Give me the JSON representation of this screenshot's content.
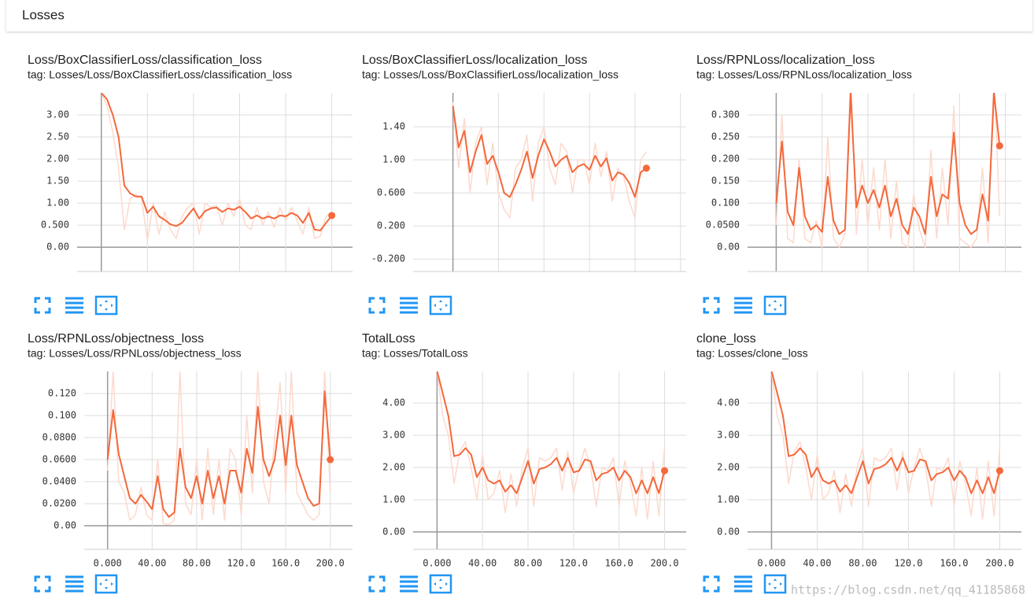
{
  "header": {
    "title": "Losses"
  },
  "watermark": "https://blog.csdn.net/qq_41185868",
  "chart_data": [
    {
      "type": "line",
      "title": "Loss/BoxClassifierLoss/classification_loss",
      "subtitle": "tag: Losses/Loss/BoxClassifierLoss/classification_loss",
      "x": [
        0,
        5,
        10,
        15,
        20,
        25,
        30,
        35,
        40,
        45,
        50,
        55,
        60,
        65,
        70,
        75,
        80,
        85,
        90,
        95,
        100,
        105,
        110,
        115,
        120,
        125,
        130,
        135,
        140,
        145,
        150,
        155,
        160,
        165,
        170,
        175,
        180,
        185,
        190,
        195,
        200
      ],
      "series": [
        {
          "color": "#fcd9cd",
          "values": [
            3.5,
            3.2,
            2.6,
            1.8,
            0.4,
            1.1,
            1.2,
            1.1,
            0.15,
            1.0,
            0.3,
            0.8,
            0.4,
            0.2,
            0.7,
            0.9,
            1.0,
            0.3,
            1.0,
            0.9,
            0.95,
            0.5,
            1.0,
            0.7,
            1.1,
            0.5,
            0.4,
            0.9,
            0.5,
            0.8,
            0.45,
            0.9,
            0.6,
            0.9,
            0.6,
            0.3,
            0.9,
            0.2,
            0.25,
            0.7,
            0.8
          ]
        },
        {
          "color": "#f4683b",
          "values": [
            3.5,
            3.35,
            3.0,
            2.5,
            1.4,
            1.22,
            1.15,
            1.15,
            0.78,
            0.92,
            0.7,
            0.62,
            0.52,
            0.48,
            0.55,
            0.72,
            0.88,
            0.65,
            0.82,
            0.88,
            0.9,
            0.8,
            0.88,
            0.85,
            0.92,
            0.8,
            0.65,
            0.72,
            0.65,
            0.7,
            0.65,
            0.72,
            0.7,
            0.78,
            0.72,
            0.55,
            0.78,
            0.4,
            0.38,
            0.55,
            0.72
          ]
        }
      ],
      "xlim": [
        -21,
        218
      ],
      "xticks": [
        0,
        40,
        80,
        120,
        160,
        200
      ],
      "xtick_labels": false,
      "ylim": [
        -0.55,
        3.5
      ],
      "yticks": [
        {
          "value": 0,
          "label": "0.00"
        },
        {
          "value": 0.5,
          "label": "0.500"
        },
        {
          "value": 1,
          "label": "1.00"
        },
        {
          "value": 1.5,
          "label": "1.50"
        },
        {
          "value": 2,
          "label": "2.00"
        },
        {
          "value": 2.5,
          "label": "2.50"
        },
        {
          "value": 3,
          "label": "3.00"
        }
      ],
      "grid": true
    },
    {
      "type": "line",
      "title": "Loss/BoxClassifierLoss/localization_loss",
      "subtitle": "tag: Losses/Loss/BoxClassifierLoss/localization_loss",
      "x": [
        0,
        5,
        10,
        15,
        20,
        25,
        30,
        35,
        40,
        45,
        50,
        55,
        60,
        65,
        70,
        75,
        80,
        85,
        90,
        95,
        100,
        105,
        110,
        115,
        120,
        125,
        130,
        135,
        140,
        145,
        150,
        155,
        160,
        165,
        170
      ],
      "series": [
        {
          "color": "#fcd9cd",
          "values": [
            1.7,
            0.9,
            1.5,
            0.6,
            1.2,
            1.4,
            0.7,
            1.2,
            0.6,
            0.4,
            0.3,
            0.9,
            1.0,
            1.3,
            0.5,
            1.2,
            1.4,
            0.9,
            0.7,
            1.2,
            1.1,
            0.6,
            1.0,
            1.0,
            0.7,
            1.2,
            0.8,
            1.1,
            0.5,
            0.9,
            0.8,
            0.5,
            0.3,
            1.0,
            1.1
          ]
        },
        {
          "color": "#f4683b",
          "values": [
            1.65,
            1.15,
            1.35,
            0.85,
            1.1,
            1.3,
            0.95,
            1.05,
            0.85,
            0.6,
            0.55,
            0.7,
            0.88,
            1.1,
            0.78,
            1.05,
            1.25,
            1.1,
            0.92,
            1.0,
            1.05,
            0.85,
            0.92,
            0.95,
            0.88,
            1.05,
            0.92,
            1.02,
            0.75,
            0.85,
            0.82,
            0.72,
            0.55,
            0.85,
            0.9
          ]
        }
      ],
      "xlim": [
        -35,
        205
      ],
      "xticks": [
        0,
        40,
        80,
        120,
        160,
        200
      ],
      "xtick_labels": false,
      "ylim": [
        -0.35,
        1.81
      ],
      "yticks": [
        {
          "value": -0.2,
          "label": "-0.200"
        },
        {
          "value": 0.2,
          "label": "0.200"
        },
        {
          "value": 0.6,
          "label": "0.600"
        },
        {
          "value": 1,
          "label": "1.00"
        },
        {
          "value": 1.4,
          "label": "1.40"
        }
      ],
      "grid": true
    },
    {
      "type": "line",
      "title": "Loss/RPNLoss/localization_loss",
      "subtitle": "tag: Losses/Loss/RPNLoss/localization_loss",
      "x": [
        0,
        5,
        10,
        15,
        20,
        25,
        30,
        35,
        40,
        45,
        50,
        55,
        60,
        65,
        70,
        75,
        80,
        85,
        90,
        95,
        100,
        105,
        110,
        115,
        120,
        125,
        130,
        135,
        140,
        145,
        150,
        155,
        160,
        165,
        170,
        175,
        180,
        185,
        190,
        195
      ],
      "series": [
        {
          "color": "#fcd9cd",
          "values": [
            0.05,
            0.3,
            0.02,
            0.01,
            0.2,
            0.02,
            0.01,
            0.06,
            0.0,
            0.25,
            0.02,
            0.0,
            0.03,
            0.4,
            0.03,
            0.2,
            0.05,
            0.18,
            0.04,
            0.2,
            0.02,
            0.15,
            0.01,
            0.0,
            0.12,
            0.04,
            0.0,
            0.22,
            0.02,
            0.18,
            0.05,
            0.32,
            0.02,
            0.01,
            0.0,
            0.02,
            0.18,
            0.01,
            0.4,
            0.07
          ]
        },
        {
          "color": "#f4683b",
          "values": [
            0.1,
            0.24,
            0.08,
            0.05,
            0.18,
            0.07,
            0.04,
            0.05,
            0.035,
            0.16,
            0.06,
            0.03,
            0.04,
            0.35,
            0.09,
            0.14,
            0.1,
            0.13,
            0.09,
            0.14,
            0.07,
            0.11,
            0.05,
            0.03,
            0.09,
            0.07,
            0.03,
            0.16,
            0.07,
            0.12,
            0.11,
            0.26,
            0.1,
            0.05,
            0.03,
            0.04,
            0.12,
            0.06,
            0.35,
            0.23
          ]
        }
      ],
      "xlim": [
        -25,
        214
      ],
      "xticks": [
        0,
        40,
        80,
        120,
        160,
        200
      ],
      "xtick_labels": false,
      "ylim": [
        -0.055,
        0.35
      ],
      "yticks": [
        {
          "value": 0,
          "label": "0.00"
        },
        {
          "value": 0.05,
          "label": "0.0500"
        },
        {
          "value": 0.1,
          "label": "0.100"
        },
        {
          "value": 0.15,
          "label": "0.150"
        },
        {
          "value": 0.2,
          "label": "0.200"
        },
        {
          "value": 0.25,
          "label": "0.250"
        },
        {
          "value": 0.3,
          "label": "0.300"
        }
      ],
      "grid": true
    },
    {
      "type": "line",
      "title": "Loss/RPNLoss/objectness_loss",
      "subtitle": "tag: Losses/Loss/RPNLoss/objectness_loss",
      "x": [
        0,
        5,
        10,
        15,
        20,
        25,
        30,
        35,
        40,
        45,
        50,
        55,
        60,
        65,
        70,
        75,
        80,
        85,
        90,
        95,
        100,
        105,
        110,
        115,
        120,
        125,
        130,
        135,
        140,
        145,
        150,
        155,
        160,
        165,
        170,
        175,
        180,
        185,
        190,
        195,
        200
      ],
      "series": [
        {
          "color": "#fcd9cd",
          "values": [
            0.05,
            0.14,
            0.04,
            0.03,
            0.005,
            0.01,
            0.035,
            0.01,
            0.005,
            0.06,
            0.002,
            0.001,
            0.005,
            0.14,
            0.02,
            0.01,
            0.06,
            0.005,
            0.07,
            0.01,
            0.06,
            0.005,
            0.07,
            0.06,
            0.01,
            0.1,
            0.03,
            0.14,
            0.04,
            0.02,
            0.08,
            0.13,
            0.03,
            0.14,
            0.03,
            0.02,
            0.01,
            0.005,
            0.01,
            0.14,
            0.03
          ]
        },
        {
          "color": "#f4683b",
          "values": [
            0.06,
            0.105,
            0.065,
            0.045,
            0.025,
            0.02,
            0.028,
            0.022,
            0.015,
            0.045,
            0.015,
            0.008,
            0.012,
            0.07,
            0.035,
            0.025,
            0.045,
            0.02,
            0.05,
            0.025,
            0.045,
            0.02,
            0.05,
            0.05,
            0.03,
            0.07,
            0.048,
            0.108,
            0.06,
            0.045,
            0.06,
            0.1,
            0.055,
            0.1,
            0.055,
            0.04,
            0.025,
            0.018,
            0.02,
            0.122,
            0.06
          ]
        }
      ],
      "xlim": [
        -21,
        220
      ],
      "xticks": [
        {
          "value": 0,
          "label": "0.000"
        },
        {
          "value": 40,
          "label": "40.00"
        },
        {
          "value": 80,
          "label": "80.00"
        },
        {
          "value": 120,
          "label": "120.0"
        },
        {
          "value": 160,
          "label": "160.0"
        },
        {
          "value": 200,
          "label": "200.0"
        }
      ],
      "ylim": [
        -0.0214,
        0.14
      ],
      "yticks": [
        {
          "value": 0,
          "label": "0.00"
        },
        {
          "value": 0.02,
          "label": "0.0200"
        },
        {
          "value": 0.04,
          "label": "0.0400"
        },
        {
          "value": 0.06,
          "label": "0.0600"
        },
        {
          "value": 0.08,
          "label": "0.0800"
        },
        {
          "value": 0.1,
          "label": "0.100"
        },
        {
          "value": 0.12,
          "label": "0.120"
        }
      ],
      "grid": true
    },
    {
      "type": "line",
      "title": "TotalLoss",
      "subtitle": "tag: Losses/TotalLoss",
      "x": [
        0,
        5,
        10,
        15,
        20,
        25,
        30,
        35,
        40,
        45,
        50,
        55,
        60,
        65,
        70,
        75,
        80,
        85,
        90,
        95,
        100,
        105,
        110,
        115,
        120,
        125,
        130,
        135,
        140,
        145,
        150,
        155,
        160,
        165,
        170,
        175,
        180,
        185,
        190,
        195,
        200
      ],
      "series": [
        {
          "color": "#fcd9cd",
          "values": [
            5.0,
            3.6,
            3.0,
            1.5,
            2.5,
            2.8,
            2.0,
            1.0,
            2.4,
            1.0,
            1.2,
            1.9,
            0.6,
            1.8,
            0.8,
            2.0,
            2.6,
            0.8,
            2.3,
            2.2,
            2.3,
            2.6,
            1.3,
            2.5,
            1.2,
            2.0,
            2.6,
            2.0,
            0.8,
            2.0,
            1.9,
            2.3,
            0.8,
            2.2,
            1.5,
            0.5,
            2.0,
            0.4,
            2.2,
            0.5,
            2.6
          ]
        },
        {
          "color": "#f4683b",
          "values": [
            5.0,
            4.3,
            3.6,
            2.35,
            2.4,
            2.6,
            2.4,
            1.7,
            2.0,
            1.6,
            1.5,
            1.6,
            1.25,
            1.45,
            1.2,
            1.7,
            2.2,
            1.5,
            1.95,
            2.0,
            2.1,
            2.3,
            1.9,
            2.3,
            1.85,
            1.9,
            2.25,
            2.2,
            1.6,
            1.8,
            1.85,
            2.0,
            1.6,
            1.9,
            1.7,
            1.2,
            1.6,
            1.2,
            1.7,
            1.2,
            1.9
          ]
        }
      ],
      "xlim": [
        -21,
        219
      ],
      "xticks": [
        {
          "value": 0,
          "label": "0.000"
        },
        {
          "value": 40,
          "label": "40.00"
        },
        {
          "value": 80,
          "label": "80.00"
        },
        {
          "value": 120,
          "label": "120.0"
        },
        {
          "value": 160,
          "label": "160.0"
        },
        {
          "value": 200,
          "label": "200.0"
        }
      ],
      "ylim": [
        -0.54,
        4.98
      ],
      "yticks": [
        {
          "value": 0,
          "label": "0.00"
        },
        {
          "value": 1,
          "label": "1.00"
        },
        {
          "value": 2,
          "label": "2.00"
        },
        {
          "value": 3,
          "label": "3.00"
        },
        {
          "value": 4,
          "label": "4.00"
        }
      ],
      "grid": true
    },
    {
      "type": "line",
      "title": "clone_loss",
      "subtitle": "tag: Losses/clone_loss",
      "x": [
        0,
        5,
        10,
        15,
        20,
        25,
        30,
        35,
        40,
        45,
        50,
        55,
        60,
        65,
        70,
        75,
        80,
        85,
        90,
        95,
        100,
        105,
        110,
        115,
        120,
        125,
        130,
        135,
        140,
        145,
        150,
        155,
        160,
        165,
        170,
        175,
        180,
        185,
        190,
        195,
        200
      ],
      "series": [
        {
          "color": "#fcd9cd",
          "values": [
            5.0,
            3.6,
            3.0,
            1.5,
            2.5,
            2.8,
            2.0,
            1.0,
            2.4,
            1.0,
            1.2,
            1.9,
            0.6,
            1.8,
            0.8,
            2.0,
            2.6,
            0.8,
            2.3,
            2.2,
            2.3,
            2.6,
            1.3,
            2.5,
            1.2,
            2.0,
            2.6,
            2.0,
            0.8,
            2.0,
            1.9,
            2.3,
            0.8,
            2.2,
            1.5,
            0.5,
            2.0,
            0.4,
            2.2,
            0.5,
            2.6
          ]
        },
        {
          "color": "#f4683b",
          "values": [
            5.0,
            4.3,
            3.6,
            2.35,
            2.4,
            2.6,
            2.4,
            1.7,
            2.0,
            1.6,
            1.5,
            1.6,
            1.25,
            1.45,
            1.2,
            1.7,
            2.2,
            1.5,
            1.95,
            2.0,
            2.1,
            2.3,
            1.9,
            2.3,
            1.85,
            1.9,
            2.25,
            2.2,
            1.6,
            1.8,
            1.85,
            2.0,
            1.6,
            1.9,
            1.7,
            1.2,
            1.6,
            1.2,
            1.7,
            1.2,
            1.9
          ]
        }
      ],
      "xlim": [
        -21,
        219
      ],
      "xticks": [
        {
          "value": 0,
          "label": "0.000"
        },
        {
          "value": 40,
          "label": "40.00"
        },
        {
          "value": 80,
          "label": "80.00"
        },
        {
          "value": 120,
          "label": "120.0"
        },
        {
          "value": 160,
          "label": "160.0"
        },
        {
          "value": 200,
          "label": "200.0"
        }
      ],
      "ylim": [
        -0.54,
        4.98
      ],
      "yticks": [
        {
          "value": 0,
          "label": "0.00"
        },
        {
          "value": 1,
          "label": "1.00"
        },
        {
          "value": 2,
          "label": "2.00"
        },
        {
          "value": 3,
          "label": "3.00"
        },
        {
          "value": 4,
          "label": "4.00"
        }
      ],
      "grid": true
    }
  ]
}
